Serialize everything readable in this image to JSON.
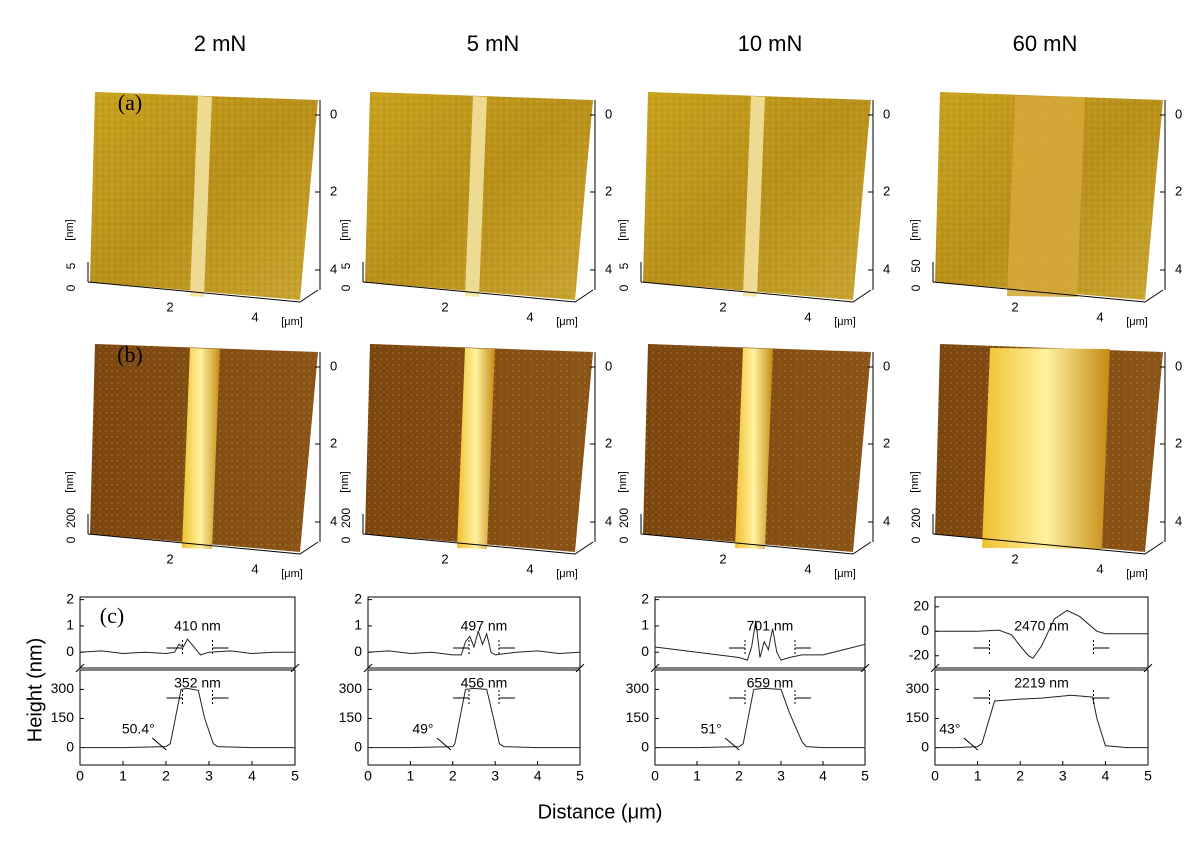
{
  "columns": [
    {
      "title": "2 mN",
      "image_a": {
        "z_ticks": [
          "0",
          "5"
        ]
      },
      "image_b": {
        "z_ticks": [
          "0",
          "200"
        ]
      },
      "profile": {
        "top": {
          "ylim": [
            -0.6,
            2.1
          ],
          "yticks": [
            0,
            1,
            2
          ],
          "width_label": "410 nm",
          "x": [
            0,
            0.5,
            1,
            1.5,
            2,
            2.2,
            2.3,
            2.4,
            2.5,
            2.6,
            2.7,
            2.8,
            3,
            3.5,
            4,
            4.5,
            5
          ],
          "y": [
            0,
            0.05,
            -0.05,
            0,
            -0.05,
            0,
            0.3,
            0.2,
            0.5,
            0.3,
            0.1,
            -0.1,
            0,
            0.05,
            -0.05,
            0,
            0
          ]
        },
        "bottom": {
          "ylim": [
            -90,
            400
          ],
          "yticks": [
            0,
            150,
            300
          ],
          "width_label": "352 nm",
          "angle_label": "50.4°",
          "x": [
            0,
            1,
            2,
            2.1,
            2.35,
            2.5,
            2.75,
            2.9,
            3.1,
            3.2,
            4,
            5
          ],
          "y": [
            0,
            0,
            5,
            20,
            300,
            305,
            295,
            150,
            20,
            5,
            0,
            0
          ]
        }
      }
    },
    {
      "title": "5 mN",
      "image_a": {
        "z_ticks": [
          "0",
          "5"
        ]
      },
      "image_b": {
        "z_ticks": [
          "0",
          "200"
        ]
      },
      "profile": {
        "top": {
          "ylim": [
            -0.6,
            2.1
          ],
          "yticks": [
            0,
            1,
            2
          ],
          "width_label": "497 nm",
          "x": [
            0,
            0.5,
            1,
            1.5,
            2,
            2.2,
            2.3,
            2.4,
            2.5,
            2.6,
            2.7,
            2.8,
            2.9,
            3,
            3.5,
            4,
            4.5,
            5
          ],
          "y": [
            0,
            0.05,
            -0.05,
            0,
            -0.1,
            -0.1,
            0.4,
            0.6,
            0.2,
            0.8,
            0.3,
            0.7,
            0,
            -0.1,
            0,
            0.05,
            -0.05,
            0
          ]
        },
        "bottom": {
          "ylim": [
            -90,
            400
          ],
          "yticks": [
            0,
            150,
            300
          ],
          "width_label": "456 nm",
          "angle_label": "49°",
          "x": [
            0,
            1,
            2,
            2.05,
            2.3,
            2.5,
            2.8,
            2.95,
            3.1,
            3.2,
            4,
            5
          ],
          "y": [
            0,
            0,
            5,
            20,
            300,
            305,
            300,
            160,
            20,
            5,
            0,
            0
          ]
        }
      }
    },
    {
      "title": "10 mN",
      "image_a": {
        "z_ticks": [
          "0",
          "5"
        ]
      },
      "image_b": {
        "z_ticks": [
          "0",
          "200"
        ]
      },
      "profile": {
        "top": {
          "ylim": [
            -0.6,
            2.1
          ],
          "yticks": [
            0,
            1,
            2
          ],
          "width_label": "701 nm",
          "x": [
            0,
            0.5,
            1,
            1.5,
            2,
            2.2,
            2.3,
            2.4,
            2.5,
            2.6,
            2.7,
            2.8,
            2.9,
            3,
            3.2,
            3.5,
            4,
            4.5,
            5
          ],
          "y": [
            0.2,
            0.1,
            0,
            -0.1,
            -0.2,
            -0.3,
            0.2,
            1.2,
            -0.2,
            0.4,
            0.1,
            0.9,
            0,
            -0.3,
            -0.2,
            -0.1,
            -0.1,
            0.1,
            0.3
          ]
        },
        "bottom": {
          "ylim": [
            -90,
            400
          ],
          "yticks": [
            0,
            150,
            300
          ],
          "width_label": "659 nm",
          "angle_label": "51°",
          "x": [
            0,
            1,
            2,
            2.1,
            2.35,
            2.6,
            3,
            3.2,
            3.5,
            3.6,
            4,
            5
          ],
          "y": [
            0,
            0,
            5,
            20,
            300,
            305,
            300,
            180,
            30,
            5,
            0,
            0
          ]
        }
      }
    },
    {
      "title": "60 mN",
      "image_a": {
        "z_ticks": [
          "0",
          "50"
        ]
      },
      "image_b": {
        "z_ticks": [
          "0",
          "200"
        ]
      },
      "profile": {
        "top": {
          "ylim": [
            -30,
            28
          ],
          "yticks": [
            -20,
            0,
            20
          ],
          "width_label": "2470 nm",
          "x": [
            0,
            0.5,
            1,
            1.5,
            1.8,
            2,
            2.2,
            2.3,
            2.5,
            2.8,
            3.1,
            3.4,
            3.8,
            4,
            4.5,
            5
          ],
          "y": [
            0,
            0,
            0,
            1,
            -3,
            -12,
            -20,
            -22,
            -12,
            10,
            17,
            12,
            0,
            -2,
            -2,
            -2
          ]
        },
        "bottom": {
          "ylim": [
            -90,
            400
          ],
          "yticks": [
            0,
            150,
            300
          ],
          "width_label": "2219 nm",
          "angle_label": "43°",
          "x": [
            0,
            0.5,
            1,
            1.1,
            1.4,
            2,
            2.5,
            3.2,
            3.7,
            3.8,
            4,
            4.5,
            5
          ],
          "y": [
            0,
            0,
            5,
            20,
            240,
            250,
            255,
            270,
            260,
            150,
            10,
            0,
            0
          ]
        }
      }
    }
  ],
  "panel_labels": [
    "(a)",
    "(b)",
    "(c)"
  ],
  "image_axis": {
    "depth_ticks": [
      "0",
      "2",
      "4"
    ],
    "x_ticks": [
      "2",
      "4"
    ],
    "x_unit": "[μm]",
    "z_unit": "[nm]"
  },
  "profile_xlim": [
    0,
    5
  ],
  "profile_xticks": [
    0,
    1,
    2,
    3,
    4,
    5
  ],
  "y_title": "Height (nm)",
  "x_title": "Distance (μm)"
}
